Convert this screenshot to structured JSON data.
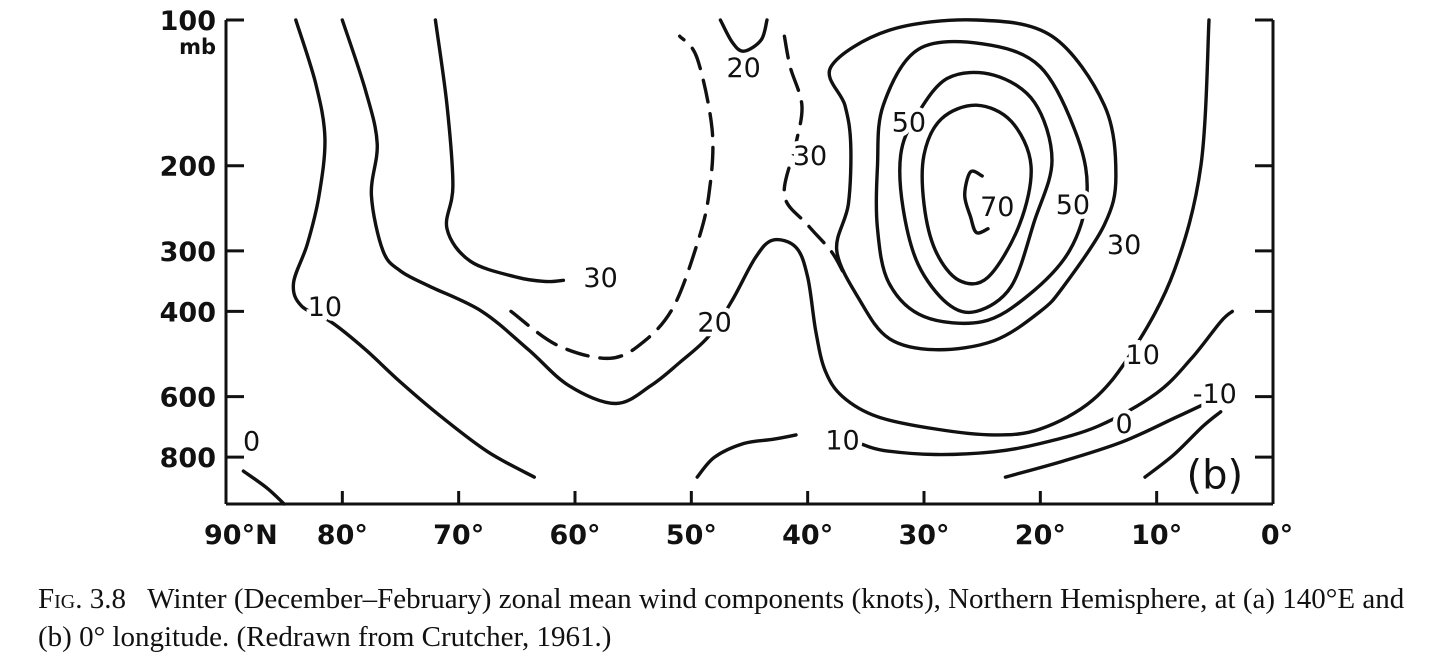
{
  "chart_data": {
    "type": "contour",
    "panel_label": "(b)",
    "x_axis": {
      "ticks": [
        90,
        80,
        70,
        60,
        50,
        40,
        30,
        20,
        10,
        0
      ],
      "tick_labels": [
        "90°N",
        "80°",
        "70°",
        "60°",
        "50°",
        "40°",
        "30°",
        "20°",
        "10°",
        "0°"
      ],
      "range": [
        90,
        0
      ]
    },
    "y_axis": {
      "scale": "log",
      "reversed": true,
      "ticks": [
        100,
        200,
        300,
        400,
        600,
        800
      ],
      "tick_labels": [
        "100",
        "200",
        "300",
        "400",
        "600",
        "800"
      ],
      "unit_label": "mb",
      "range": [
        100,
        1000
      ]
    },
    "contours": [
      {
        "label": "0",
        "dashed": false,
        "points": [
          [
            85.0,
            1000
          ],
          [
            86.5,
            926
          ],
          [
            88.5,
            855
          ]
        ]
      },
      {
        "label": "10",
        "dashed": false,
        "points": [
          [
            84.0,
            100
          ],
          [
            82.3,
            135
          ],
          [
            81.5,
            175
          ],
          [
            82.0,
            230
          ],
          [
            83.0,
            290
          ],
          [
            84.2,
            350
          ],
          [
            83.5,
            390
          ],
          [
            81.0,
            420
          ],
          [
            78.0,
            480
          ],
          [
            75.0,
            560
          ],
          [
            71.5,
            660
          ],
          [
            67.5,
            780
          ],
          [
            63.5,
            880
          ]
        ]
      },
      {
        "label": "30",
        "dashed": false,
        "points": [
          [
            72.0,
            100
          ],
          [
            71.0,
            150
          ],
          [
            70.5,
            220
          ],
          [
            71.0,
            270
          ],
          [
            69.0,
            315
          ],
          [
            65.0,
            340
          ],
          [
            62.5,
            347
          ],
          [
            61.0,
            345
          ]
        ]
      },
      {
        "label": "20",
        "dashed": false,
        "points": [
          [
            80.0,
            100
          ],
          [
            78.0,
            140
          ],
          [
            77.0,
            180
          ],
          [
            77.5,
            230
          ],
          [
            76.5,
            300
          ],
          [
            75.0,
            330
          ],
          [
            72.5,
            355
          ],
          [
            68.0,
            400
          ],
          [
            64.0,
            480
          ],
          [
            60.5,
            570
          ],
          [
            56.5,
            620
          ],
          [
            53.5,
            570
          ],
          [
            51.0,
            510
          ],
          [
            48.5,
            450
          ],
          [
            46.5,
            380
          ],
          [
            44.5,
            310
          ],
          [
            43.0,
            285
          ],
          [
            41.0,
            295
          ],
          [
            40.0,
            340
          ],
          [
            39.3,
            440
          ],
          [
            38.5,
            530
          ],
          [
            37.0,
            600
          ],
          [
            34.0,
            660
          ],
          [
            29.0,
            700
          ],
          [
            24.0,
            720
          ],
          [
            20.0,
            700
          ],
          [
            15.5,
            610
          ],
          [
            12.0,
            480
          ],
          [
            8.5,
            330
          ],
          [
            6.2,
            200
          ],
          [
            5.5,
            100
          ]
        ]
      },
      {
        "label": "30",
        "dashed": true,
        "points": [
          [
            65.5,
            400
          ],
          [
            61.5,
            470
          ],
          [
            57.0,
            500
          ],
          [
            54.0,
            460
          ],
          [
            51.5,
            390
          ],
          [
            49.5,
            290
          ],
          [
            48.5,
            230
          ],
          [
            48.2,
            170
          ],
          [
            49.5,
            120
          ],
          [
            51.0,
            108
          ]
        ]
      },
      {
        "label": "20",
        "dashed": false,
        "points": [
          [
            47.5,
            100
          ],
          [
            46.5,
            111
          ],
          [
            45.5,
            116
          ],
          [
            44.0,
            110
          ],
          [
            43.5,
            100
          ]
        ]
      },
      {
        "label": "30",
        "dashed": true,
        "points": [
          [
            42.0,
            108
          ],
          [
            41.5,
            125
          ],
          [
            40.5,
            150
          ],
          [
            41.0,
            180
          ],
          [
            42.0,
            230
          ],
          [
            40.0,
            265
          ],
          [
            38.0,
            300
          ],
          [
            37.0,
            330
          ]
        ]
      },
      {
        "label": "10",
        "dashed": false,
        "points": [
          [
            49.5,
            880
          ],
          [
            48.0,
            800
          ],
          [
            45.5,
            750
          ],
          [
            43.0,
            735
          ],
          [
            41.0,
            720
          ]
        ]
      },
      {
        "label": "10",
        "dashed": false,
        "points": [
          [
            35.5,
            750
          ],
          [
            33.5,
            775
          ],
          [
            29.0,
            790
          ],
          [
            24.0,
            780
          ],
          [
            20.0,
            750
          ],
          [
            15.0,
            690
          ],
          [
            10.0,
            590
          ],
          [
            7.0,
            500
          ],
          [
            4.5,
            420
          ],
          [
            3.5,
            400
          ]
        ]
      },
      {
        "label": "0",
        "dashed": false,
        "points": [
          [
            23.0,
            880
          ],
          [
            18.0,
            815
          ],
          [
            13.0,
            745
          ],
          [
            8.5,
            665
          ],
          [
            5.5,
            615
          ]
        ]
      },
      {
        "label": "-10",
        "dashed": false,
        "points": [
          [
            11.0,
            880
          ],
          [
            8.5,
            790
          ],
          [
            6.0,
            690
          ],
          [
            4.5,
            645
          ]
        ]
      },
      {
        "label": "30",
        "dashed": false,
        "points": [
          [
            37.5,
            300
          ],
          [
            36.5,
            240
          ],
          [
            36.3,
            180
          ],
          [
            36.8,
            150
          ],
          [
            38.0,
            125
          ],
          [
            33.0,
            105
          ],
          [
            25.5,
            100
          ],
          [
            19.0,
            108
          ],
          [
            14.5,
            150
          ],
          [
            13.5,
            210
          ],
          [
            14.5,
            265
          ],
          [
            18.0,
            355
          ],
          [
            20.0,
            400
          ],
          [
            24.0,
            460
          ],
          [
            29.0,
            480
          ],
          [
            33.0,
            455
          ],
          [
            35.5,
            380
          ],
          [
            37.5,
            300
          ]
        ]
      },
      {
        "label": "50",
        "dashed": false,
        "points": [
          [
            30.5,
            320
          ],
          [
            31.8,
            245
          ],
          [
            32.0,
            190
          ],
          [
            30.8,
            160
          ],
          [
            28.0,
            132
          ],
          [
            24.0,
            130
          ],
          [
            20.5,
            148
          ],
          [
            19.0,
            195
          ],
          [
            20.5,
            260
          ],
          [
            22.5,
            355
          ],
          [
            25.5,
            400
          ],
          [
            28.0,
            385
          ],
          [
            30.5,
            320
          ]
        ]
      },
      {
        "label": "70",
        "dashed": false,
        "points": [
          [
            25.0,
            210
          ],
          [
            26.0,
            206
          ],
          [
            26.5,
            230
          ],
          [
            26.0,
            255
          ],
          [
            25.5,
            275
          ],
          [
            24.5,
            270
          ]
        ]
      },
      {
        "label": "50",
        "dashed": false,
        "points": [
          [
            29.0,
            300
          ],
          [
            30.0,
            240
          ],
          [
            30.0,
            190
          ],
          [
            28.5,
            160
          ],
          [
            25.5,
            150
          ],
          [
            22.5,
            162
          ],
          [
            20.8,
            200
          ],
          [
            21.8,
            265
          ],
          [
            24.5,
            340
          ],
          [
            27.0,
            345
          ],
          [
            29.0,
            300
          ]
        ]
      },
      {
        "label": "50",
        "dashed": false,
        "points": [
          [
            33.0,
            350
          ],
          [
            34.0,
            270
          ],
          [
            34.0,
            200
          ],
          [
            33.5,
            150
          ],
          [
            30.5,
            115
          ],
          [
            25.0,
            112
          ],
          [
            20.0,
            125
          ],
          [
            16.8,
            175
          ],
          [
            16.0,
            230
          ],
          [
            17.5,
            300
          ],
          [
            21.0,
            370
          ],
          [
            25.0,
            420
          ],
          [
            30.0,
            410
          ],
          [
            33.0,
            350
          ]
        ]
      }
    ],
    "contour_labels": [
      {
        "text": "0",
        "x": 87.8,
        "p": 740
      },
      {
        "text": "10",
        "x": 81.5,
        "p": 390
      },
      {
        "text": "30",
        "x": 57.8,
        "p": 340
      },
      {
        "text": "20",
        "x": 45.5,
        "p": 125
      },
      {
        "text": "30",
        "x": 39.8,
        "p": 190
      },
      {
        "text": "20",
        "x": 48.0,
        "p": 420
      },
      {
        "text": "10",
        "x": 37.0,
        "p": 735
      },
      {
        "text": "50",
        "x": 31.3,
        "p": 162
      },
      {
        "text": "70",
        "x": 23.7,
        "p": 242
      },
      {
        "text": "50",
        "x": 17.2,
        "p": 240
      },
      {
        "text": "30",
        "x": 12.8,
        "p": 290
      },
      {
        "text": "10",
        "x": 11.2,
        "p": 490
      },
      {
        "text": "0",
        "x": 12.8,
        "p": 680
      },
      {
        "text": "-10",
        "x": 5.0,
        "p": 590
      }
    ]
  },
  "caption": {
    "fig_label": "Fig.",
    "fig_number": "3.8",
    "text": "Winter (December–February) zonal mean wind components (knots), Northern Hemisphere, at (a) 140°E and (b) 0° longitude. (Redrawn from Crutcher, 1961.)"
  }
}
